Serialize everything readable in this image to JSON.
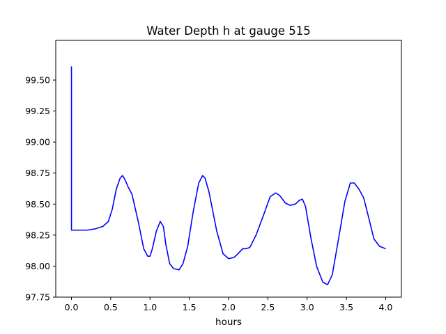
{
  "chart_data": {
    "type": "line",
    "title": "Water Depth h at gauge 515",
    "xlabel": "hours",
    "ylabel": "",
    "xlim": [
      -0.2,
      4.2
    ],
    "ylim": [
      97.75,
      99.82
    ],
    "xticks": [
      0.0,
      0.5,
      1.0,
      1.5,
      2.0,
      2.5,
      3.0,
      3.5,
      4.0
    ],
    "xtick_labels": [
      "0.0",
      "0.5",
      "1.0",
      "1.5",
      "2.0",
      "2.5",
      "3.0",
      "3.5",
      "4.0"
    ],
    "yticks": [
      97.75,
      98.0,
      98.25,
      98.5,
      98.75,
      99.0,
      99.25,
      99.5
    ],
    "ytick_labels": [
      "97.75",
      "98.00",
      "98.25",
      "98.50",
      "98.75",
      "99.00",
      "99.25",
      "99.50"
    ],
    "grid": false,
    "series": [
      {
        "color": "#0000ff",
        "x": [
          0.0,
          0.0,
          0.0,
          0.1,
          0.2,
          0.3,
          0.4,
          0.47,
          0.52,
          0.57,
          0.62,
          0.65,
          0.68,
          0.72,
          0.77,
          0.85,
          0.92,
          0.97,
          1.0,
          1.03,
          1.08,
          1.13,
          1.17,
          1.2,
          1.25,
          1.3,
          1.37,
          1.42,
          1.48,
          1.55,
          1.62,
          1.67,
          1.7,
          1.75,
          1.85,
          1.93,
          2.0,
          2.07,
          2.12,
          2.18,
          2.22,
          2.27,
          2.35,
          2.45,
          2.53,
          2.6,
          2.65,
          2.72,
          2.78,
          2.85,
          2.9,
          2.94,
          2.98,
          3.05,
          3.12,
          3.2,
          3.26,
          3.32,
          3.4,
          3.48,
          3.55,
          3.6,
          3.66,
          3.72,
          3.78,
          3.85,
          3.92,
          4.0
        ],
        "y": [
          99.61,
          99.61,
          98.29,
          98.29,
          98.29,
          98.3,
          98.32,
          98.36,
          98.46,
          98.62,
          98.71,
          98.73,
          98.7,
          98.64,
          98.58,
          98.36,
          98.14,
          98.08,
          98.08,
          98.14,
          98.28,
          98.36,
          98.32,
          98.18,
          98.02,
          97.98,
          97.97,
          98.02,
          98.16,
          98.44,
          98.67,
          98.73,
          98.71,
          98.6,
          98.28,
          98.1,
          98.06,
          98.07,
          98.1,
          98.14,
          98.14,
          98.15,
          98.25,
          98.42,
          98.56,
          98.59,
          98.57,
          98.51,
          98.49,
          98.5,
          98.53,
          98.54,
          98.48,
          98.22,
          98.0,
          97.87,
          97.85,
          97.93,
          98.22,
          98.52,
          98.67,
          98.67,
          98.62,
          98.55,
          98.4,
          98.22,
          98.16,
          98.14
        ]
      }
    ]
  }
}
